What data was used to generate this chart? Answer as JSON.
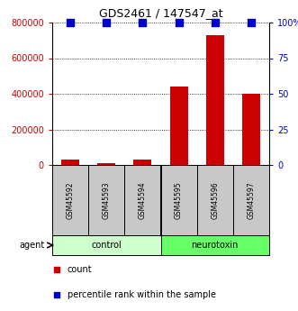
{
  "title": "GDS2461 / 147547_at",
  "samples": [
    "GSM45592",
    "GSM45593",
    "GSM45594",
    "GSM45595",
    "GSM45596",
    "GSM45597"
  ],
  "counts": [
    28000,
    10000,
    30000,
    440000,
    730000,
    400000
  ],
  "percentiles": [
    100,
    100,
    100,
    100,
    100,
    100
  ],
  "groups": [
    "control",
    "control",
    "control",
    "neurotoxin",
    "neurotoxin",
    "neurotoxin"
  ],
  "group_colors": {
    "control": "#ccffcc",
    "neurotoxin": "#66ff66"
  },
  "bar_color": "#cc0000",
  "dot_color": "#0000cc",
  "left_ylim": [
    0,
    800000
  ],
  "right_ylim": [
    0,
    100
  ],
  "left_yticks": [
    0,
    200000,
    400000,
    600000,
    800000
  ],
  "left_yticklabels": [
    "0",
    "200000",
    "400000",
    "600000",
    "800000"
  ],
  "right_yticks": [
    0,
    25,
    50,
    75,
    100
  ],
  "right_yticklabels": [
    "0",
    "25",
    "50",
    "75",
    "100%"
  ],
  "xlabel_agent": "agent",
  "legend_count": "count",
  "legend_pct": "percentile rank within the sample",
  "bg_color": "#ffffff",
  "plot_bg": "#ffffff",
  "tick_color_left": "#cc0000",
  "tick_color_right": "#0000cc",
  "bar_width": 0.5,
  "dot_size": 40,
  "sample_box_color": "#c8c8c8",
  "sample_box_edge": "#000000"
}
